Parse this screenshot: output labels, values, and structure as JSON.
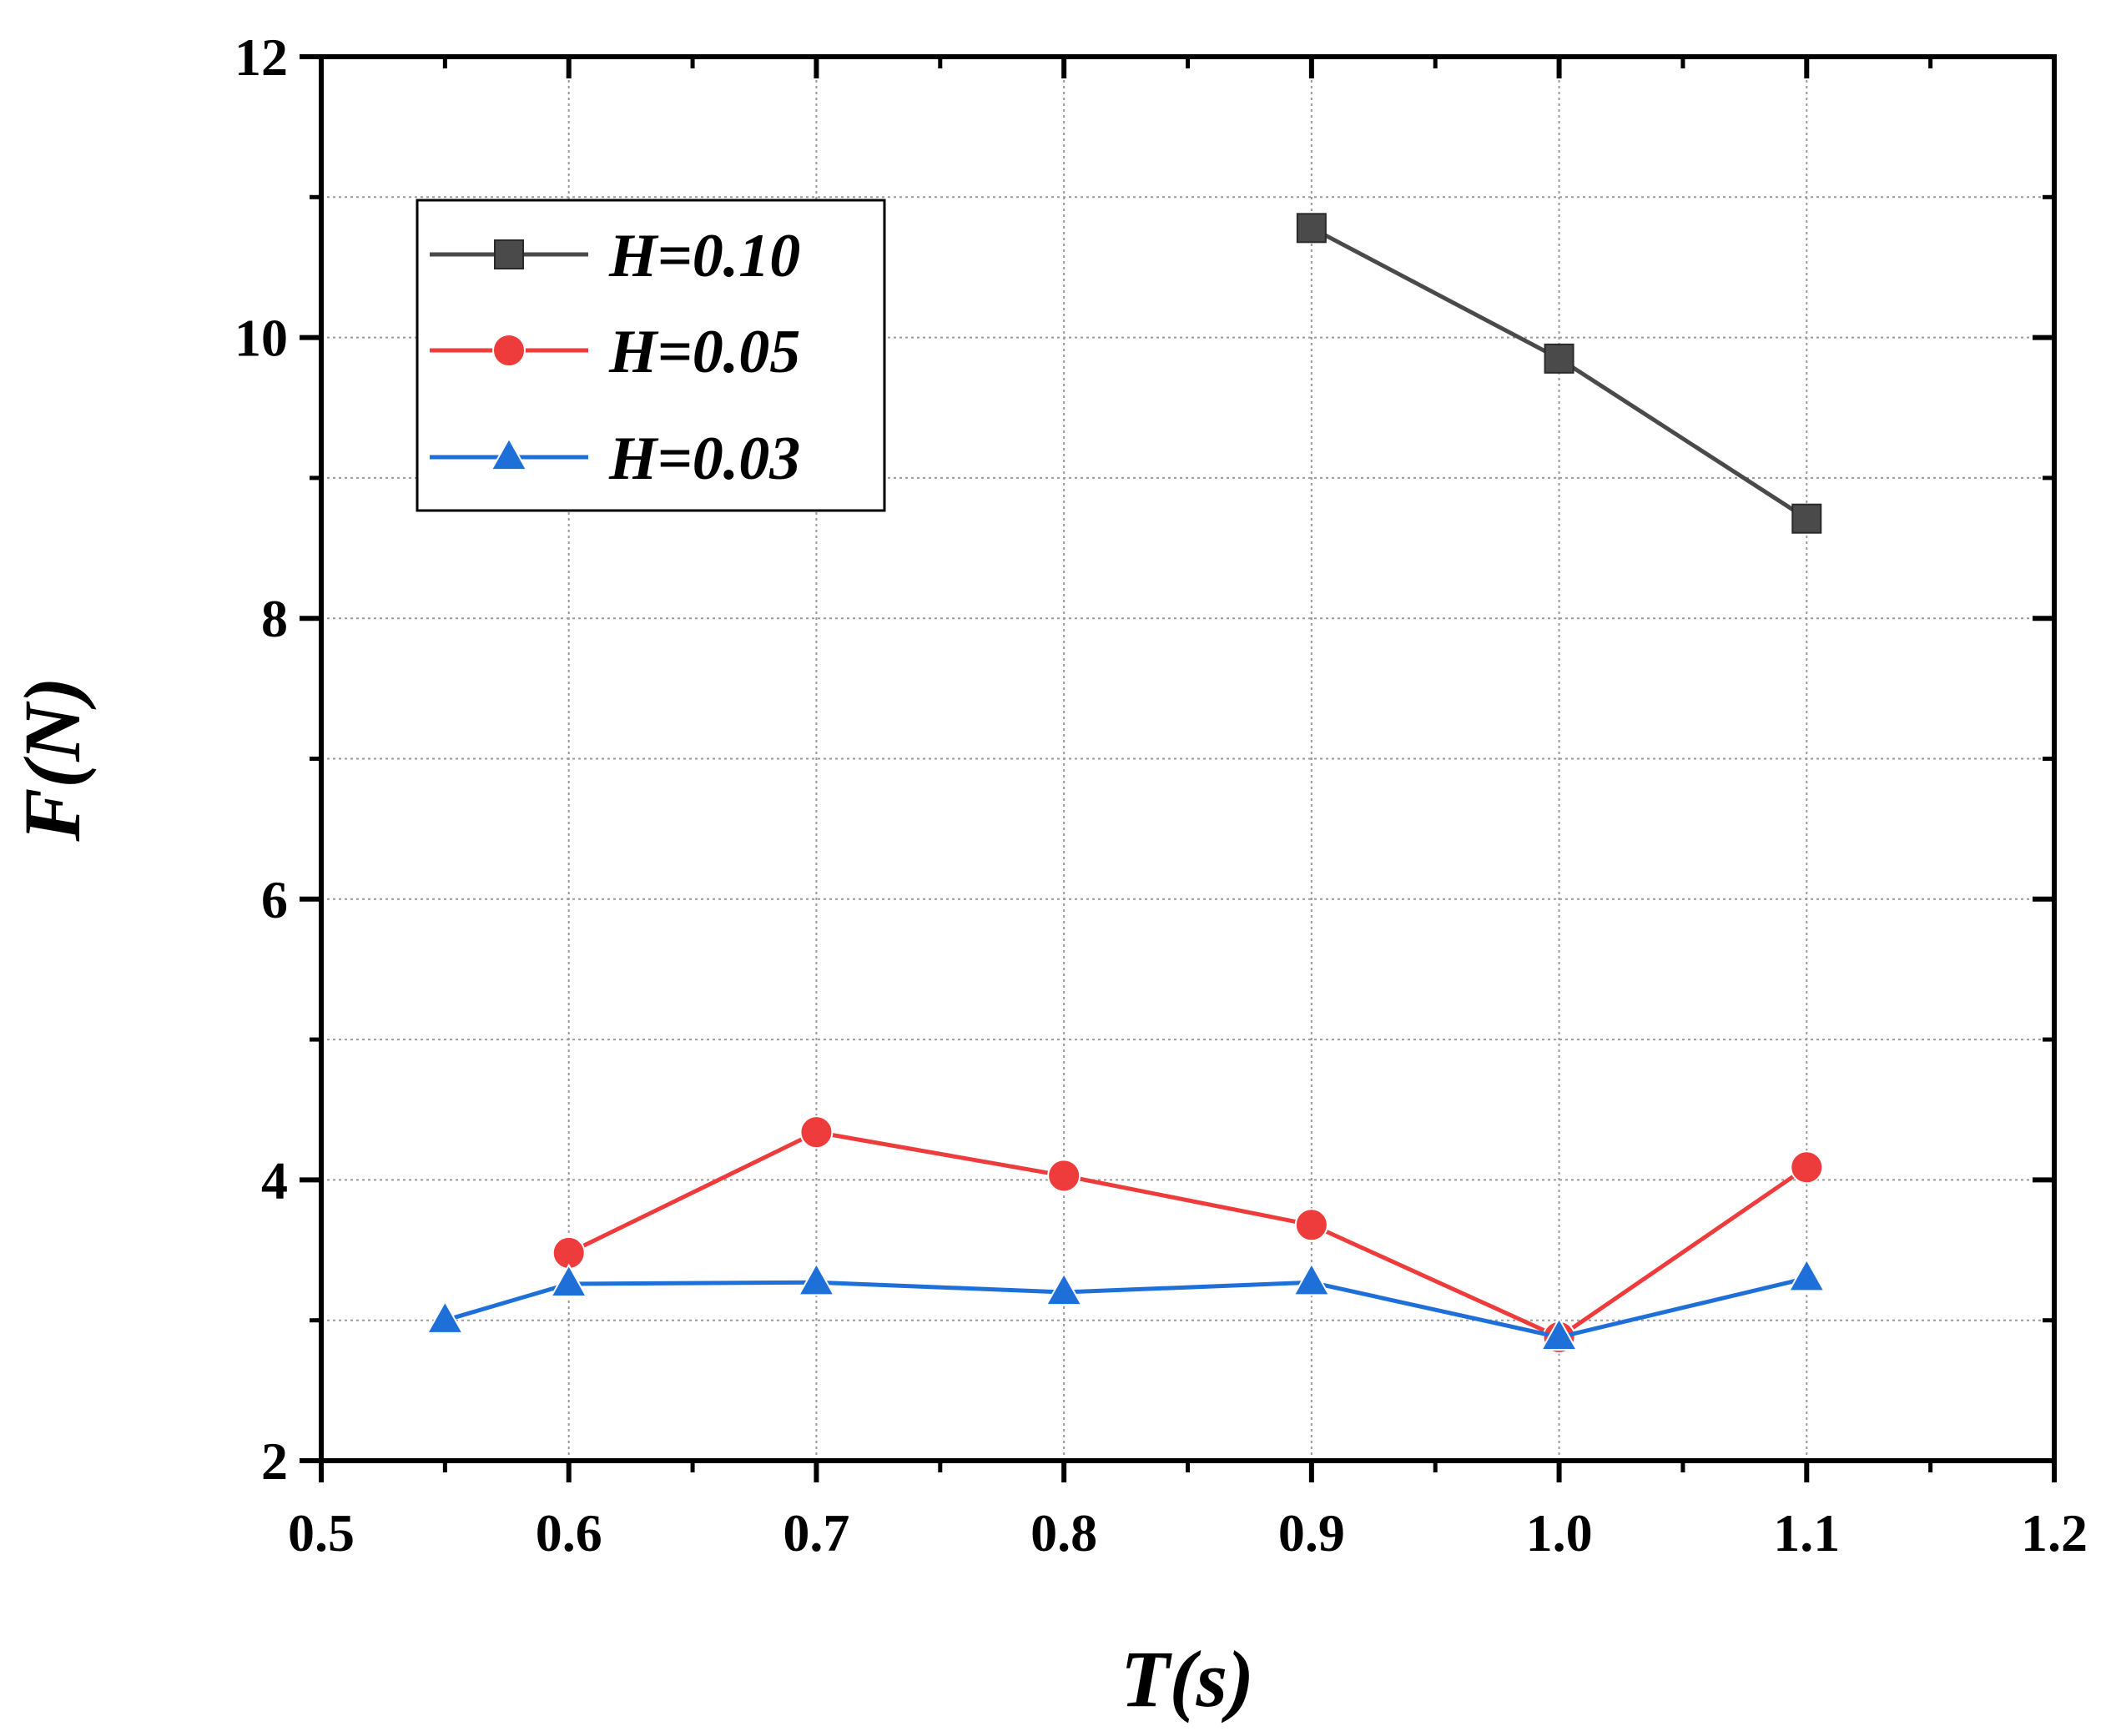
{
  "chart_data": {
    "type": "line",
    "title": "",
    "xlabel": "T(s)",
    "ylabel": "F(N)",
    "xlim": [
      0.5,
      1.2
    ],
    "ylim": [
      2,
      12
    ],
    "xticks": [
      0.5,
      0.6,
      0.7,
      0.8,
      0.9,
      1.0,
      1.1,
      1.2
    ],
    "xtick_labels": [
      "0.5",
      "0.6",
      "0.7",
      "0.8",
      "0.9",
      "1.0",
      "1.1",
      "1.2"
    ],
    "yticks": [
      2,
      4,
      6,
      8,
      10,
      12
    ],
    "ytick_labels": [
      "2",
      "4",
      "6",
      "8",
      "10",
      "12"
    ],
    "grid": true,
    "legend_position": "top-left",
    "series": [
      {
        "name": "H=0.10",
        "marker": "square",
        "color": "#4a4a4a",
        "x": [
          0.9,
          1.0,
          1.1
        ],
        "y": [
          10.78,
          9.85,
          8.71
        ]
      },
      {
        "name": "H=0.05",
        "marker": "circle",
        "color": "#ee3b3b",
        "x": [
          0.6,
          0.7,
          0.8,
          0.9,
          1.0,
          1.1
        ],
        "y": [
          3.48,
          4.34,
          4.03,
          3.68,
          2.88,
          4.09
        ]
      },
      {
        "name": "H=0.03",
        "marker": "triangle",
        "color": "#1f6fd8",
        "x": [
          0.55,
          0.6,
          0.7,
          0.8,
          0.9,
          1.0,
          1.1
        ],
        "y": [
          3.0,
          3.26,
          3.27,
          3.2,
          3.27,
          2.88,
          3.3
        ]
      }
    ]
  }
}
